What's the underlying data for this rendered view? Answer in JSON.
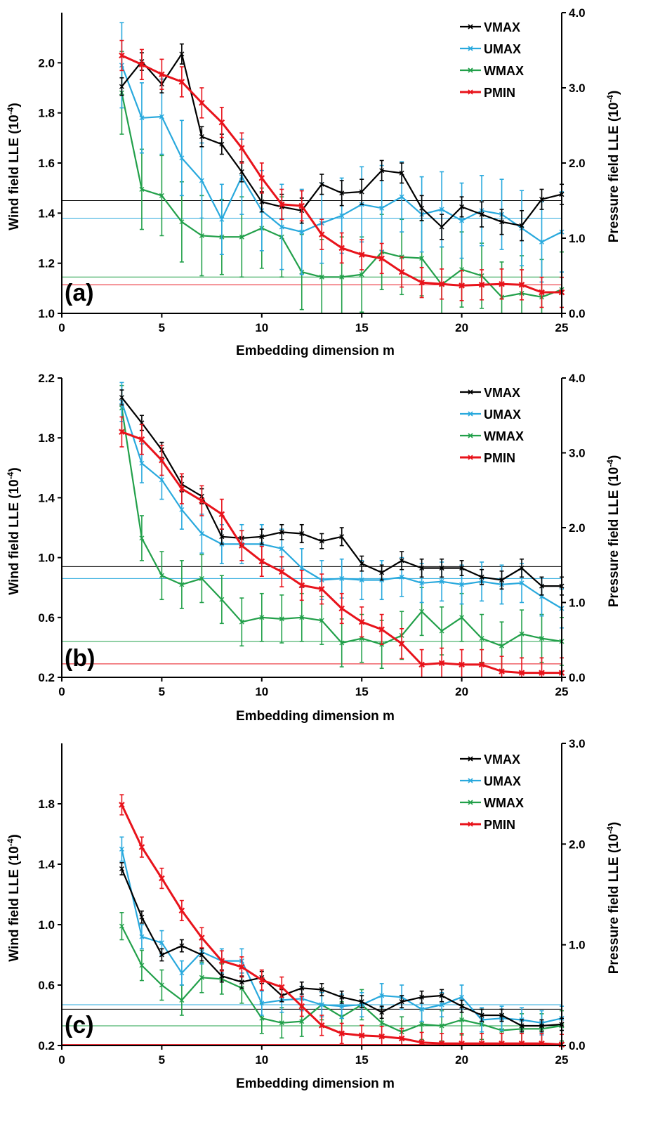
{
  "series_styles": [
    {
      "name": "VMAX",
      "color": "#000000"
    },
    {
      "name": "UMAX",
      "color": "#29a9dd"
    },
    {
      "name": "WMAX",
      "color": "#22a04a"
    },
    {
      "name": "PMIN",
      "color": "#e8131b"
    }
  ],
  "chart_data": [
    {
      "type": "line",
      "panel_label": "(a)",
      "xlabel": "Embedding dimension m",
      "ylabel": "Wind field LLE (10",
      "ylabel_sup": "-4",
      "ylabel_right": "Pressure field LLE (10",
      "ylabel_right_sup": "-4",
      "xlim": [
        0,
        25
      ],
      "ylim": [
        1.0,
        2.2
      ],
      "ylim_right": [
        0.0,
        4.0
      ],
      "xticks": [
        "0",
        "5",
        "10",
        "15",
        "20",
        "25"
      ],
      "yticks": [
        "1.0",
        "1.2",
        "1.4",
        "1.6",
        "1.8",
        "2.0"
      ],
      "yticks_right": [
        "0.0",
        "1.0",
        "2.0",
        "3.0",
        "4.0"
      ],
      "legend": [
        "VMAX",
        "UMAX",
        "WMAX",
        "PMIN"
      ],
      "legend_position": "top-right",
      "x": [
        3,
        4,
        5,
        6,
        7,
        8,
        9,
        10,
        11,
        12,
        13,
        14,
        15,
        16,
        17,
        18,
        19,
        20,
        21,
        22,
        23,
        24,
        25
      ],
      "series": [
        {
          "name": "VMAX",
          "axis": "left",
          "values": [
            1.905,
            2.005,
            1.915,
            2.035,
            1.705,
            1.675,
            1.565,
            1.445,
            1.425,
            1.41,
            1.515,
            1.48,
            1.485,
            1.57,
            1.56,
            1.42,
            1.345,
            1.425,
            1.395,
            1.365,
            1.35,
            1.455,
            1.475
          ],
          "err": [
            0.035,
            0.035,
            0.035,
            0.04,
            0.04,
            0.04,
            0.04,
            0.04,
            0.05,
            0.05,
            0.04,
            0.05,
            0.05,
            0.04,
            0.04,
            0.05,
            0.05,
            0.04,
            0.05,
            0.05,
            0.06,
            0.04,
            0.04
          ]
        },
        {
          "name": "UMAX",
          "axis": "left",
          "values": [
            1.99,
            1.78,
            1.785,
            1.62,
            1.53,
            1.375,
            1.545,
            1.41,
            1.345,
            1.325,
            1.36,
            1.39,
            1.435,
            1.42,
            1.465,
            1.395,
            1.415,
            1.37,
            1.41,
            1.395,
            1.34,
            1.285,
            1.325
          ],
          "err": [
            0.17,
            0.14,
            0.15,
            0.15,
            0.15,
            0.14,
            0.15,
            0.16,
            0.17,
            0.17,
            0.16,
            0.15,
            0.15,
            0.17,
            0.14,
            0.15,
            0.15,
            0.15,
            0.14,
            0.14,
            0.15,
            0.16,
            0.16
          ]
        },
        {
          "name": "WMAX",
          "axis": "left",
          "values": [
            1.88,
            1.495,
            1.47,
            1.365,
            1.31,
            1.305,
            1.305,
            1.34,
            1.305,
            1.165,
            1.145,
            1.145,
            1.155,
            1.245,
            1.225,
            1.22,
            1.115,
            1.175,
            1.15,
            1.065,
            1.08,
            1.065,
            1.095
          ],
          "err": [
            0.165,
            0.16,
            0.16,
            0.16,
            0.16,
            0.15,
            0.16,
            0.16,
            0.16,
            0.15,
            0.15,
            0.16,
            0.15,
            0.15,
            0.15,
            0.15,
            0.15,
            0.15,
            0.13,
            0.14,
            0.15,
            0.15,
            0.15
          ]
        },
        {
          "name": "PMIN",
          "axis": "right",
          "values": [
            3.43,
            3.31,
            3.18,
            3.08,
            2.8,
            2.54,
            2.2,
            1.8,
            1.45,
            1.43,
            1.05,
            0.87,
            0.78,
            0.73,
            0.55,
            0.41,
            0.39,
            0.37,
            0.38,
            0.39,
            0.38,
            0.28,
            0.28
          ],
          "err": [
            0.2,
            0.2,
            0.2,
            0.2,
            0.2,
            0.2,
            0.2,
            0.2,
            0.2,
            0.2,
            0.2,
            0.2,
            0.2,
            0.2,
            0.2,
            0.2,
            0.2,
            0.2,
            0.2,
            0.2,
            0.2,
            0.2,
            0.2
          ]
        }
      ],
      "hlines": [
        {
          "axis": "left",
          "y": 1.45,
          "color": "#000000"
        },
        {
          "axis": "left",
          "y": 1.38,
          "color": "#29a9dd"
        },
        {
          "axis": "left",
          "y": 1.145,
          "color": "#22a04a"
        },
        {
          "axis": "right",
          "y": 0.38,
          "color": "#e8131b"
        }
      ]
    },
    {
      "type": "line",
      "panel_label": "(b)",
      "xlabel": "Embedding dimension m",
      "ylabel": "Wind field LLE (10",
      "ylabel_sup": "-4",
      "ylabel_right": "Pressure field LLE (10",
      "ylabel_right_sup": "-4",
      "xlim": [
        0,
        25
      ],
      "ylim": [
        0.2,
        2.2
      ],
      "ylim_right": [
        0.0,
        4.0
      ],
      "xticks": [
        "0",
        "5",
        "10",
        "15",
        "20",
        "25"
      ],
      "yticks": [
        "0.2",
        "0.6",
        "1.0",
        "1.4",
        "1.8",
        "2.2"
      ],
      "yticks_right": [
        "0.0",
        "1.0",
        "2.0",
        "3.0",
        "4.0"
      ],
      "legend": [
        "VMAX",
        "UMAX",
        "WMAX",
        "PMIN"
      ],
      "legend_position": "top-right",
      "x": [
        3,
        4,
        5,
        6,
        7,
        8,
        9,
        10,
        11,
        12,
        13,
        14,
        15,
        16,
        17,
        18,
        19,
        20,
        21,
        22,
        23,
        24,
        25
      ],
      "series": [
        {
          "name": "VMAX",
          "axis": "left",
          "values": [
            2.07,
            1.9,
            1.72,
            1.49,
            1.41,
            1.14,
            1.13,
            1.14,
            1.17,
            1.16,
            1.11,
            1.14,
            0.96,
            0.9,
            0.98,
            0.93,
            0.93,
            0.93,
            0.87,
            0.85,
            0.93,
            0.81,
            0.81
          ],
          "err": [
            0.05,
            0.05,
            0.05,
            0.05,
            0.05,
            0.05,
            0.05,
            0.05,
            0.05,
            0.06,
            0.05,
            0.06,
            0.05,
            0.05,
            0.06,
            0.06,
            0.06,
            0.05,
            0.05,
            0.06,
            0.06,
            0.06,
            0.06
          ]
        },
        {
          "name": "UMAX",
          "axis": "left",
          "values": [
            2.04,
            1.63,
            1.52,
            1.32,
            1.16,
            1.09,
            1.09,
            1.09,
            1.06,
            0.93,
            0.85,
            0.86,
            0.85,
            0.85,
            0.87,
            0.83,
            0.84,
            0.82,
            0.84,
            0.82,
            0.83,
            0.74,
            0.66
          ],
          "err": [
            0.13,
            0.13,
            0.13,
            0.13,
            0.13,
            0.13,
            0.13,
            0.13,
            0.13,
            0.13,
            0.13,
            0.13,
            0.13,
            0.13,
            0.13,
            0.13,
            0.13,
            0.13,
            0.13,
            0.13,
            0.13,
            0.13,
            0.13
          ]
        },
        {
          "name": "WMAX",
          "axis": "left",
          "values": [
            2.0,
            1.13,
            0.88,
            0.82,
            0.86,
            0.72,
            0.57,
            0.6,
            0.59,
            0.6,
            0.58,
            0.43,
            0.46,
            0.42,
            0.48,
            0.64,
            0.51,
            0.6,
            0.46,
            0.41,
            0.49,
            0.46,
            0.44
          ],
          "err": [
            0.15,
            0.15,
            0.16,
            0.16,
            0.16,
            0.16,
            0.16,
            0.16,
            0.16,
            0.16,
            0.16,
            0.16,
            0.16,
            0.16,
            0.16,
            0.16,
            0.16,
            0.16,
            0.16,
            0.16,
            0.16,
            0.16,
            0.16
          ]
        },
        {
          "name": "PMIN",
          "axis": "right",
          "values": [
            3.28,
            3.18,
            2.9,
            2.52,
            2.36,
            2.18,
            1.76,
            1.55,
            1.41,
            1.23,
            1.18,
            0.92,
            0.74,
            0.64,
            0.45,
            0.17,
            0.19,
            0.17,
            0.17,
            0.08,
            0.06,
            0.06,
            0.06
          ],
          "err": [
            0.2,
            0.2,
            0.2,
            0.2,
            0.2,
            0.2,
            0.2,
            0.2,
            0.2,
            0.2,
            0.2,
            0.2,
            0.2,
            0.2,
            0.2,
            0.2,
            0.2,
            0.2,
            0.2,
            0.2,
            0.2,
            0.2,
            0.2
          ]
        }
      ],
      "hlines": [
        {
          "axis": "left",
          "y": 0.94,
          "color": "#000000"
        },
        {
          "axis": "left",
          "y": 0.86,
          "color": "#29a9dd"
        },
        {
          "axis": "left",
          "y": 0.44,
          "color": "#22a04a"
        },
        {
          "axis": "right",
          "y": 0.18,
          "color": "#e8131b"
        }
      ]
    },
    {
      "type": "line",
      "panel_label": "(c)",
      "xlabel": "Embedding dimension m",
      "ylabel": "Wind field LLE (10",
      "ylabel_sup": "-4",
      "ylabel_right": "Pressure field LLE (10",
      "ylabel_right_sup": "-4",
      "xlim": [
        0,
        25
      ],
      "ylim": [
        0.2,
        2.2
      ],
      "ylim_right": [
        0.0,
        3.0
      ],
      "xticks": [
        "0",
        "5",
        "10",
        "15",
        "20",
        "25"
      ],
      "yticks": [
        "0.2",
        "0.6",
        "1.0",
        "1.4",
        "1.8"
      ],
      "yticks_right": [
        "0.0",
        "1.0",
        "2.0",
        "3.0"
      ],
      "legend": [
        "VMAX",
        "UMAX",
        "WMAX",
        "PMIN"
      ],
      "legend_position": "top-right",
      "x": [
        3,
        4,
        5,
        6,
        7,
        8,
        9,
        10,
        11,
        12,
        13,
        14,
        15,
        16,
        17,
        18,
        19,
        20,
        21,
        22,
        23,
        24,
        25
      ],
      "series": [
        {
          "name": "VMAX",
          "axis": "left",
          "values": [
            1.37,
            1.05,
            0.8,
            0.86,
            0.8,
            0.66,
            0.62,
            0.65,
            0.53,
            0.58,
            0.57,
            0.52,
            0.49,
            0.42,
            0.49,
            0.52,
            0.53,
            0.46,
            0.4,
            0.4,
            0.33,
            0.33,
            0.34
          ],
          "err": [
            0.04,
            0.04,
            0.04,
            0.04,
            0.04,
            0.04,
            0.04,
            0.04,
            0.04,
            0.04,
            0.04,
            0.04,
            0.04,
            0.04,
            0.04,
            0.04,
            0.04,
            0.04,
            0.04,
            0.04,
            0.04,
            0.04,
            0.04
          ]
        },
        {
          "name": "UMAX",
          "axis": "left",
          "values": [
            1.5,
            0.92,
            0.88,
            0.68,
            0.82,
            0.76,
            0.76,
            0.48,
            0.5,
            0.51,
            0.47,
            0.46,
            0.47,
            0.53,
            0.52,
            0.44,
            0.47,
            0.52,
            0.37,
            0.38,
            0.37,
            0.35,
            0.38
          ],
          "err": [
            0.08,
            0.08,
            0.08,
            0.08,
            0.08,
            0.08,
            0.08,
            0.08,
            0.08,
            0.08,
            0.08,
            0.08,
            0.08,
            0.08,
            0.08,
            0.08,
            0.08,
            0.08,
            0.08,
            0.08,
            0.08,
            0.08,
            0.08
          ]
        },
        {
          "name": "WMAX",
          "axis": "left",
          "values": [
            0.99,
            0.73,
            0.6,
            0.5,
            0.65,
            0.64,
            0.58,
            0.38,
            0.35,
            0.36,
            0.47,
            0.39,
            0.47,
            0.35,
            0.29,
            0.34,
            0.33,
            0.37,
            0.34,
            0.3,
            0.31,
            0.31,
            0.33
          ],
          "err": [
            0.09,
            0.1,
            0.1,
            0.1,
            0.1,
            0.1,
            0.1,
            0.1,
            0.1,
            0.1,
            0.1,
            0.1,
            0.1,
            0.1,
            0.1,
            0.1,
            0.1,
            0.1,
            0.1,
            0.1,
            0.1,
            0.1,
            0.1
          ]
        },
        {
          "name": "PMIN",
          "axis": "right",
          "values": [
            2.39,
            1.97,
            1.66,
            1.34,
            1.07,
            0.84,
            0.78,
            0.65,
            0.58,
            0.39,
            0.2,
            0.12,
            0.1,
            0.09,
            0.07,
            0.03,
            0.02,
            0.02,
            0.02,
            0.02,
            0.02,
            0.02,
            0.01
          ],
          "err": [
            0.1,
            0.1,
            0.1,
            0.1,
            0.1,
            0.1,
            0.1,
            0.1,
            0.1,
            0.1,
            0.1,
            0.1,
            0.1,
            0.1,
            0.1,
            0.1,
            0.1,
            0.1,
            0.1,
            0.1,
            0.1,
            0.1,
            0.1
          ]
        }
      ],
      "hlines": [
        {
          "axis": "left",
          "y": 0.47,
          "color": "#29a9dd"
        },
        {
          "axis": "left",
          "y": 0.44,
          "color": "#000000"
        },
        {
          "axis": "left",
          "y": 0.33,
          "color": "#22a04a"
        },
        {
          "axis": "right",
          "y": 0.01,
          "color": "#e8131b"
        }
      ]
    }
  ]
}
